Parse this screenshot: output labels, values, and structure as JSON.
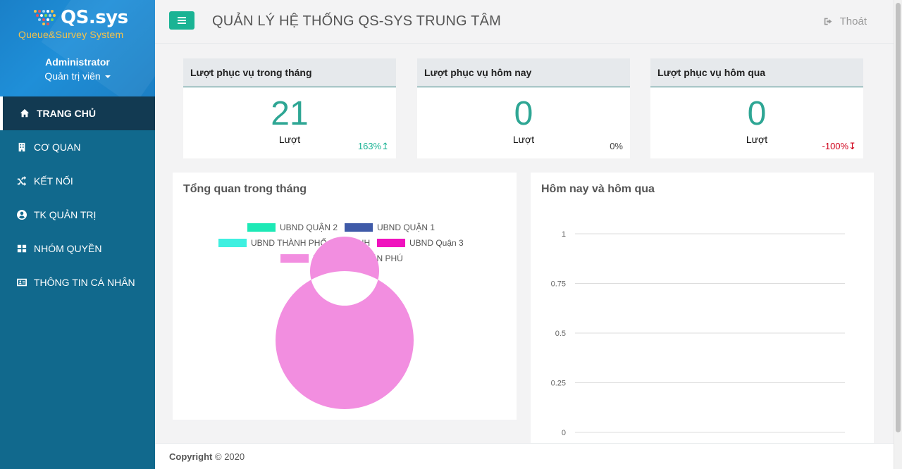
{
  "brand": {
    "title": "QS.sys",
    "subtitle": "Queue&Survey System",
    "accent": "#f5c24a"
  },
  "user": {
    "name": "Administrator",
    "role": "Quản trị viên"
  },
  "nav": [
    {
      "label": "TRANG CHỦ",
      "icon": "home-icon",
      "active": true
    },
    {
      "label": "CƠ QUAN",
      "icon": "building-icon",
      "active": false
    },
    {
      "label": "KẾT NỐI",
      "icon": "random-icon",
      "active": false
    },
    {
      "label": "TK QUẢN TRỊ",
      "icon": "user-circle-icon",
      "active": false
    },
    {
      "label": "NHÓM QUYỀN",
      "icon": "grid-icon",
      "active": false
    },
    {
      "label": "THÔNG TIN CÁ NHÂN",
      "icon": "id-card-icon",
      "active": false
    }
  ],
  "header": {
    "title": "QUẢN LÝ HỆ THỐNG QS-SYS TRUNG TÂM",
    "logout": "Thoát"
  },
  "stats": [
    {
      "title": "Lượt phục vụ trong tháng",
      "value": "21",
      "unit": "Lượt",
      "change": "163%",
      "trend": "up"
    },
    {
      "title": "Lượt phục vụ hôm nay",
      "value": "0",
      "unit": "Lượt",
      "change": "0%",
      "trend": "neutral"
    },
    {
      "title": "Lượt phục vụ hôm qua",
      "value": "0",
      "unit": "Lượt",
      "change": "-100%",
      "trend": "down"
    }
  ],
  "panels": {
    "overview_title": "Tổng quan trong tháng",
    "compare_title": "Hôm nay và hôm qua"
  },
  "footer": {
    "copyright": "Copyright",
    "year": "© 2020"
  },
  "colors": {
    "sidebar": "#11698d",
    "accent": "#1ab394",
    "value": "#2ea694"
  },
  "chart_data": [
    {
      "type": "pie",
      "donut": true,
      "title": "",
      "legend_position": "top",
      "series": [
        {
          "name": "UBND QUẬN 2",
          "value": 0,
          "color": "#1de9b6"
        },
        {
          "name": "UBND QUẬN 1",
          "value": 0,
          "color": "#3f5aa8"
        },
        {
          "name": "UBND THÀNH PHỐ  CHÍ MINH",
          "value": 0,
          "color": "#3ef0e0"
        },
        {
          "name": "UBND Quận 3",
          "value": 0,
          "color": "#f012be"
        },
        {
          "name": "UBND QUẬN TÂN PHÚ",
          "value": 21,
          "color": "#f28ee0"
        }
      ]
    },
    {
      "type": "line",
      "title": "",
      "ylim": [
        0,
        1
      ],
      "yticks": [
        "1",
        "0.75",
        "0.5",
        "0.25",
        "0"
      ],
      "grid": true,
      "series": []
    }
  ]
}
